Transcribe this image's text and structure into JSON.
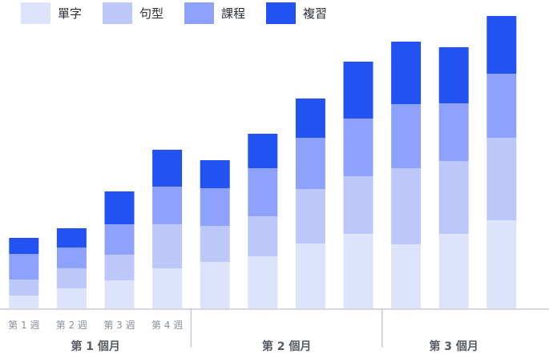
{
  "colors": {
    "series": [
      "#dde3fb",
      "#bcc7fa",
      "#8ea2fb",
      "#2352f2"
    ],
    "axis": "#c8ccd3"
  },
  "chart_data": {
    "type": "bar",
    "stacked": true,
    "categories": [
      "第 1 週",
      "第 2 週",
      "第 3 週",
      "第 4 週",
      "",
      "",
      "",
      "",
      "",
      "",
      ""
    ],
    "groups": [
      {
        "label": "第 1 個月",
        "start": 0,
        "end": 3
      },
      {
        "label": "第 2 個月",
        "start": 4,
        "end": 7
      },
      {
        "label": "第 3 個月",
        "start": 8,
        "end": 10
      }
    ],
    "series": [
      {
        "name": "單字",
        "values": [
          16,
          25,
          35,
          50,
          58,
          65,
          81,
          93,
          80,
          93,
          110
        ]
      },
      {
        "name": "句型",
        "values": [
          20,
          25,
          32,
          55,
          45,
          50,
          68,
          72,
          95,
          91,
          103
        ]
      },
      {
        "name": "課程",
        "values": [
          32,
          26,
          38,
          47,
          47,
          60,
          64,
          72,
          80,
          72,
          80
        ]
      },
      {
        "name": "複習",
        "values": [
          20,
          24,
          41,
          46,
          35,
          43,
          49,
          71,
          78,
          70,
          72
        ]
      }
    ],
    "legend_position": "top-left",
    "grid": false
  }
}
